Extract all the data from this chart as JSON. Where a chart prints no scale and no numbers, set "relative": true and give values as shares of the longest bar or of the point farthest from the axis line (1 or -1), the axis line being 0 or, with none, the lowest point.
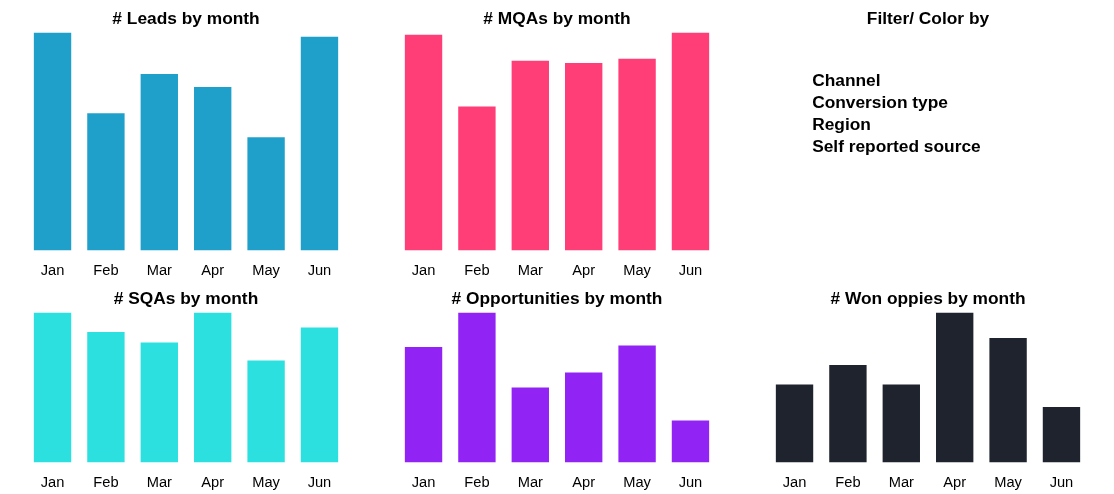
{
  "chart_data": [
    {
      "type": "bar",
      "title": "# Leads by month",
      "categories": [
        "Jan",
        "Feb",
        "Mar",
        "Apr",
        "May",
        "Jun"
      ],
      "relative": true,
      "grid": false,
      "series": [
        {
          "color": "#1fa0cb",
          "values": [
            1,
            0.63,
            0.81,
            0.75,
            0.52,
            0.98
          ]
        }
      ]
    },
    {
      "type": "bar",
      "title": "# MQAs by month",
      "categories": [
        "Jan",
        "Feb",
        "Mar",
        "Apr",
        "May",
        "Jun"
      ],
      "relative": true,
      "grid": false,
      "series": [
        {
          "color": "#ff3d77",
          "values": [
            0.99,
            0.66,
            0.87,
            0.86,
            0.88,
            1
          ]
        }
      ]
    },
    {
      "type": "other",
      "title": "Filter/ Color by",
      "annotations": [
        "Channel",
        "Conversion type",
        "Region",
        "Self reported source"
      ]
    },
    {
      "type": "bar",
      "title": "# SQAs by month",
      "categories": [
        "Jan",
        "Feb",
        "Mar",
        "Apr",
        "May",
        "Jun"
      ],
      "relative": true,
      "grid": false,
      "series": [
        {
          "color": "#2de0e0",
          "values": [
            1,
            0.87,
            0.8,
            1,
            0.68,
            0.9
          ]
        }
      ]
    },
    {
      "type": "bar",
      "title": "# Opportunities by month",
      "categories": [
        "Jan",
        "Feb",
        "Mar",
        "Apr",
        "May",
        "Jun"
      ],
      "relative": true,
      "grid": false,
      "series": [
        {
          "color": "#9123f5",
          "values": [
            0.77,
            1,
            0.5,
            0.6,
            0.78,
            0.28
          ]
        }
      ]
    },
    {
      "type": "bar",
      "title": "# Won oppies by month",
      "categories": [
        "Jan",
        "Feb",
        "Mar",
        "Apr",
        "May",
        "Jun"
      ],
      "relative": true,
      "grid": false,
      "series": [
        {
          "color": "#1f232d",
          "values": [
            0.52,
            0.65,
            0.52,
            1,
            0.83,
            0.37
          ]
        }
      ]
    }
  ]
}
